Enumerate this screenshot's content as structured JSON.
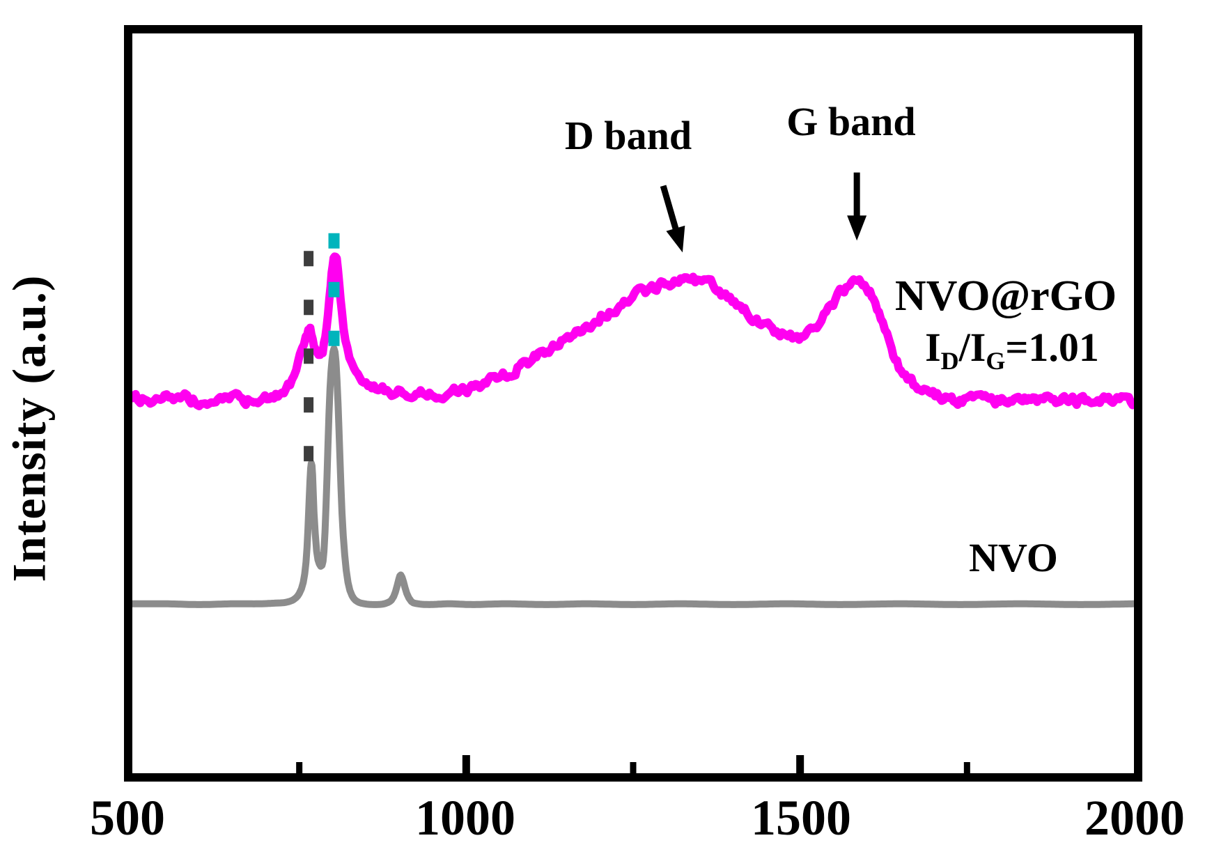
{
  "chart_data": {
    "type": "line",
    "title": "",
    "xlabel": "",
    "ylabel": "Intensity (a.u.)",
    "xlim": [
      500,
      2000
    ],
    "grid": false,
    "x_tick_labels": [
      {
        "value": 500,
        "label": "500"
      },
      {
        "value": 1000,
        "label": "1000"
      },
      {
        "value": 1500,
        "label": "1500"
      },
      {
        "value": 2000,
        "label": "2000"
      }
    ],
    "x_ticks_major": [
      1000,
      1500
    ],
    "x_ticks_minor": [
      750,
      1250,
      1750
    ],
    "frame_color": "#000000",
    "annotations": {
      "d_band": {
        "label": "D band",
        "points_to_cm1": 1330
      },
      "g_band": {
        "label": "G band",
        "points_to_cm1": 1585
      },
      "series1": {
        "label": "NVO@rGO"
      },
      "ratio": {
        "base1": "I",
        "sub1": "D",
        "slash": "/I",
        "sub2": "G",
        "value": "=1.01"
      },
      "series2": {
        "label": "NVO"
      }
    },
    "arrows": [
      {
        "for": "d_band",
        "x_from": 1295,
        "u_from": 0.794,
        "x_to": 1324,
        "u_to": 0.704
      },
      {
        "for": "g_band",
        "x_from": 1585,
        "u_from": 0.812,
        "x_to": 1585,
        "u_to": 0.72
      }
    ],
    "guides": [
      {
        "name": "peak-guide-764",
        "x": 764,
        "color": "#3d3d3d",
        "u_top": 0.706,
        "u_bottom": 0.412,
        "dash": "22 48",
        "width": 14
      },
      {
        "name": "peak-guide-802",
        "x": 802,
        "color": "#00b4bc",
        "u_top": 0.73,
        "u_bottom": 0.574,
        "dash": "22 48",
        "width": 16
      }
    ],
    "series": [
      {
        "name": "NVO@rGO",
        "color": "#ff00f0",
        "stroke_width": 12,
        "noise": 5.5,
        "peaks_cm1": [
          764,
          802,
          1338,
          1589
        ],
        "points": [
          [
            500,
            0.503
          ],
          [
            515,
            0.506
          ],
          [
            530,
            0.503
          ],
          [
            548,
            0.506
          ],
          [
            565,
            0.504
          ],
          [
            582,
            0.507
          ],
          [
            600,
            0.504
          ],
          [
            618,
            0.506
          ],
          [
            635,
            0.504
          ],
          [
            652,
            0.507
          ],
          [
            670,
            0.505
          ],
          [
            688,
            0.508
          ],
          [
            705,
            0.51
          ],
          [
            718,
            0.513
          ],
          [
            730,
            0.52
          ],
          [
            742,
            0.536
          ],
          [
            751,
            0.56
          ],
          [
            757,
            0.582
          ],
          [
            762,
            0.598
          ],
          [
            765,
            0.603
          ],
          [
            768,
            0.597
          ],
          [
            772,
            0.583
          ],
          [
            777,
            0.568
          ],
          [
            781,
            0.561
          ],
          [
            785,
            0.568
          ],
          [
            789,
            0.592
          ],
          [
            793,
            0.628
          ],
          [
            797,
            0.664
          ],
          [
            800,
            0.688
          ],
          [
            803,
            0.697
          ],
          [
            806,
            0.69
          ],
          [
            810,
            0.662
          ],
          [
            814,
            0.625
          ],
          [
            819,
            0.588
          ],
          [
            825,
            0.56
          ],
          [
            832,
            0.543
          ],
          [
            841,
            0.532
          ],
          [
            853,
            0.525
          ],
          [
            868,
            0.519
          ],
          [
            885,
            0.516
          ],
          [
            905,
            0.514
          ],
          [
            925,
            0.513
          ],
          [
            945,
            0.514
          ],
          [
            965,
            0.514
          ],
          [
            985,
            0.516
          ],
          [
            1005,
            0.52
          ],
          [
            1030,
            0.528
          ],
          [
            1055,
            0.538
          ],
          [
            1080,
            0.55
          ],
          [
            1105,
            0.563
          ],
          [
            1130,
            0.577
          ],
          [
            1155,
            0.591
          ],
          [
            1180,
            0.605
          ],
          [
            1205,
            0.62
          ],
          [
            1230,
            0.634
          ],
          [
            1255,
            0.646
          ],
          [
            1278,
            0.655
          ],
          [
            1298,
            0.661
          ],
          [
            1315,
            0.665
          ],
          [
            1330,
            0.667
          ],
          [
            1343,
            0.666
          ],
          [
            1356,
            0.663
          ],
          [
            1370,
            0.657
          ],
          [
            1385,
            0.648
          ],
          [
            1402,
            0.637
          ],
          [
            1420,
            0.624
          ],
          [
            1438,
            0.611
          ],
          [
            1455,
            0.601
          ],
          [
            1470,
            0.594
          ],
          [
            1482,
            0.59
          ],
          [
            1492,
            0.589
          ],
          [
            1502,
            0.591
          ],
          [
            1513,
            0.597
          ],
          [
            1525,
            0.607
          ],
          [
            1539,
            0.622
          ],
          [
            1553,
            0.639
          ],
          [
            1566,
            0.654
          ],
          [
            1577,
            0.663
          ],
          [
            1586,
            0.668
          ],
          [
            1594,
            0.665
          ],
          [
            1602,
            0.655
          ],
          [
            1610,
            0.64
          ],
          [
            1618,
            0.62
          ],
          [
            1627,
            0.597
          ],
          [
            1637,
            0.573
          ],
          [
            1648,
            0.551
          ],
          [
            1661,
            0.534
          ],
          [
            1676,
            0.521
          ],
          [
            1693,
            0.513
          ],
          [
            1712,
            0.508
          ],
          [
            1733,
            0.505
          ],
          [
            1756,
            0.504
          ],
          [
            1780,
            0.505
          ],
          [
            1805,
            0.503
          ],
          [
            1830,
            0.505
          ],
          [
            1855,
            0.504
          ],
          [
            1880,
            0.505
          ],
          [
            1905,
            0.503
          ],
          [
            1930,
            0.505
          ],
          [
            1955,
            0.504
          ],
          [
            1978,
            0.505
          ],
          [
            2000,
            0.504
          ]
        ]
      },
      {
        "name": "NVO",
        "color": "#8c8c8c",
        "stroke_width": 10,
        "noise": 0,
        "peaks_cm1": [
          764,
          802,
          900
        ],
        "points": [
          [
            500,
            0.229
          ],
          [
            550,
            0.229
          ],
          [
            600,
            0.228
          ],
          [
            650,
            0.229
          ],
          [
            690,
            0.229
          ],
          [
            715,
            0.23
          ],
          [
            730,
            0.231
          ],
          [
            742,
            0.235
          ],
          [
            750,
            0.243
          ],
          [
            756,
            0.258
          ],
          [
            760,
            0.285
          ],
          [
            763,
            0.33
          ],
          [
            766,
            0.395
          ],
          [
            768,
            0.419
          ],
          [
            770,
            0.403
          ],
          [
            772,
            0.352
          ],
          [
            776,
            0.3
          ],
          [
            780,
            0.283
          ],
          [
            784,
            0.281
          ],
          [
            787,
            0.3
          ],
          [
            790,
            0.36
          ],
          [
            793,
            0.445
          ],
          [
            796,
            0.52
          ],
          [
            799,
            0.558
          ],
          [
            802,
            0.574
          ],
          [
            805,
            0.556
          ],
          [
            808,
            0.5
          ],
          [
            811,
            0.425
          ],
          [
            814,
            0.352
          ],
          [
            818,
            0.295
          ],
          [
            823,
            0.258
          ],
          [
            829,
            0.24
          ],
          [
            837,
            0.232
          ],
          [
            848,
            0.229
          ],
          [
            862,
            0.228
          ],
          [
            877,
            0.229
          ],
          [
            888,
            0.234
          ],
          [
            894,
            0.245
          ],
          [
            899,
            0.262
          ],
          [
            902,
            0.268
          ],
          [
            906,
            0.259
          ],
          [
            911,
            0.243
          ],
          [
            918,
            0.232
          ],
          [
            928,
            0.229
          ],
          [
            945,
            0.228
          ],
          [
            975,
            0.229
          ],
          [
            1010,
            0.228
          ],
          [
            1060,
            0.229
          ],
          [
            1120,
            0.228
          ],
          [
            1180,
            0.229
          ],
          [
            1250,
            0.228
          ],
          [
            1320,
            0.229
          ],
          [
            1400,
            0.228
          ],
          [
            1480,
            0.229
          ],
          [
            1560,
            0.228
          ],
          [
            1650,
            0.229
          ],
          [
            1740,
            0.228
          ],
          [
            1830,
            0.229
          ],
          [
            1920,
            0.228
          ],
          [
            2000,
            0.229
          ]
        ]
      }
    ]
  }
}
